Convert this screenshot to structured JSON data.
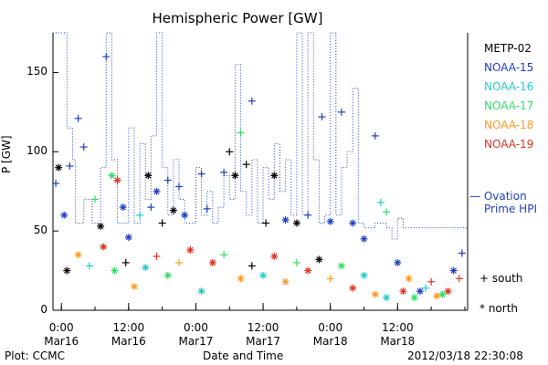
{
  "chart_data": {
    "type": "scatter",
    "title": "Hemispheric Power [GW]",
    "ylabel": "P [GW]",
    "xlabel": "Date and Time",
    "ylim": [
      0,
      175
    ],
    "yticks": [
      0,
      50,
      100,
      150
    ],
    "xlim": [
      "2012-03-15T22:30",
      "2012-03-19T00:30"
    ],
    "xticks": [
      {
        "time": "2012-03-16T00:00",
        "label": [
          "0:00",
          "Mar16"
        ]
      },
      {
        "time": "2012-03-16T12:00",
        "label": [
          "12:00",
          "Mar16"
        ]
      },
      {
        "time": "2012-03-17T00:00",
        "label": [
          "0:00",
          "Mar17"
        ]
      },
      {
        "time": "2012-03-17T12:00",
        "label": [
          "12:00",
          "Mar17"
        ]
      },
      {
        "time": "2012-03-18T00:00",
        "label": [
          "0:00",
          "Mar18"
        ]
      },
      {
        "time": "2012-03-18T12:00",
        "label": [
          "12:00",
          "Mar18"
        ]
      }
    ],
    "legend_position": "right",
    "series": [
      {
        "name": "METP-02",
        "color": "#000000"
      },
      {
        "name": "NOAA-15",
        "color": "#1f3fbf"
      },
      {
        "name": "NOAA-16",
        "color": "#22cccc"
      },
      {
        "name": "NOAA-17",
        "color": "#33dd66"
      },
      {
        "name": "NOAA-18",
        "color": "#ff9922"
      },
      {
        "name": "NOAA-19",
        "color": "#dd3322"
      }
    ],
    "ovation_line": {
      "name": "Ovation Prime HPI",
      "color": "#1f3fbf",
      "style": "dotted",
      "points": [
        [
          "2012-03-15T22:30",
          175
        ],
        [
          "2012-03-16T01:00",
          115
        ],
        [
          "2012-03-16T02:00",
          95
        ],
        [
          "2012-03-16T02:30",
          55
        ],
        [
          "2012-03-16T04:00",
          70
        ],
        [
          "2012-03-16T05:30",
          55
        ],
        [
          "2012-03-16T07:00",
          90
        ],
        [
          "2012-03-16T08:00",
          175
        ],
        [
          "2012-03-16T09:00",
          95
        ],
        [
          "2012-03-16T10:00",
          55
        ],
        [
          "2012-03-16T12:00",
          115
        ],
        [
          "2012-03-16T13:00",
          55
        ],
        [
          "2012-03-16T14:00",
          105
        ],
        [
          "2012-03-16T15:00",
          70
        ],
        [
          "2012-03-16T16:00",
          110
        ],
        [
          "2012-03-16T17:00",
          175
        ],
        [
          "2012-03-16T18:00",
          90
        ],
        [
          "2012-03-16T19:00",
          60
        ],
        [
          "2012-03-16T20:00",
          95
        ],
        [
          "2012-03-16T21:00",
          70
        ],
        [
          "2012-03-16T22:00",
          55
        ],
        [
          "2012-03-17T00:00",
          90
        ],
        [
          "2012-03-17T01:00",
          60
        ],
        [
          "2012-03-17T02:00",
          75
        ],
        [
          "2012-03-17T03:00",
          55
        ],
        [
          "2012-03-17T04:00",
          65
        ],
        [
          "2012-03-17T05:00",
          85
        ],
        [
          "2012-03-17T06:00",
          70
        ],
        [
          "2012-03-17T07:00",
          155
        ],
        [
          "2012-03-17T08:00",
          75
        ],
        [
          "2012-03-17T09:00",
          60
        ],
        [
          "2012-03-17T10:00",
          95
        ],
        [
          "2012-03-17T11:00",
          55
        ],
        [
          "2012-03-17T12:00",
          90
        ],
        [
          "2012-03-17T13:00",
          70
        ],
        [
          "2012-03-17T14:00",
          105
        ],
        [
          "2012-03-17T15:00",
          75
        ],
        [
          "2012-03-17T16:00",
          95
        ],
        [
          "2012-03-17T17:00",
          60
        ],
        [
          "2012-03-17T18:00",
          175
        ],
        [
          "2012-03-17T19:00",
          60
        ],
        [
          "2012-03-17T20:00",
          175
        ],
        [
          "2012-03-17T21:00",
          95
        ],
        [
          "2012-03-17T22:00",
          55
        ],
        [
          "2012-03-17T23:00",
          60
        ],
        [
          "2012-03-18T00:00",
          175
        ],
        [
          "2012-03-18T01:00",
          60
        ],
        [
          "2012-03-18T02:00",
          90
        ],
        [
          "2012-03-18T03:00",
          100
        ],
        [
          "2012-03-18T04:00",
          140
        ],
        [
          "2012-03-18T05:00",
          55
        ],
        [
          "2012-03-18T06:00",
          52
        ],
        [
          "2012-03-18T08:00",
          55
        ],
        [
          "2012-03-18T10:00",
          52
        ],
        [
          "2012-03-18T11:00",
          45
        ],
        [
          "2012-03-18T12:00",
          58
        ],
        [
          "2012-03-18T13:00",
          52
        ],
        [
          "2012-03-19T00:30",
          52
        ]
      ]
    },
    "points": [
      [
        "2012-03-15T23:00",
        80,
        "NOAA-15",
        "+"
      ],
      [
        "2012-03-15T23:30",
        90,
        "METP-02",
        "*"
      ],
      [
        "2012-03-16T00:30",
        60,
        "NOAA-15",
        "*"
      ],
      [
        "2012-03-16T01:30",
        91,
        "NOAA-15",
        "+"
      ],
      [
        "2012-03-16T03:00",
        121,
        "NOAA-15",
        "+"
      ],
      [
        "2012-03-16T04:00",
        103,
        "NOAA-15",
        "+"
      ],
      [
        "2012-03-16T06:00",
        70,
        "NOAA-17",
        "+"
      ],
      [
        "2012-03-16T07:00",
        53,
        "METP-02",
        "*"
      ],
      [
        "2012-03-16T08:00",
        160,
        "NOAA-15",
        "+"
      ],
      [
        "2012-03-16T09:00",
        85,
        "NOAA-17",
        "*"
      ],
      [
        "2012-03-16T10:00",
        82,
        "NOAA-19",
        "*"
      ],
      [
        "2012-03-16T11:00",
        65,
        "NOAA-15",
        "*"
      ],
      [
        "2012-03-16T12:00",
        46,
        "NOAA-15",
        "*"
      ],
      [
        "2012-03-16T14:00",
        60,
        "NOAA-16",
        "+"
      ],
      [
        "2012-03-16T15:30",
        85,
        "METP-02",
        "*"
      ],
      [
        "2012-03-16T16:00",
        65,
        "NOAA-15",
        "+"
      ],
      [
        "2012-03-16T17:00",
        75,
        "NOAA-15",
        "*"
      ],
      [
        "2012-03-16T18:00",
        55,
        "METP-02",
        "+"
      ],
      [
        "2012-03-16T19:00",
        82,
        "NOAA-15",
        "+"
      ],
      [
        "2012-03-16T20:00",
        63,
        "METP-02",
        "*"
      ],
      [
        "2012-03-16T21:00",
        78,
        "NOAA-15",
        "+"
      ],
      [
        "2012-03-16T22:00",
        60,
        "NOAA-15",
        "*"
      ],
      [
        "2012-03-17T01:00",
        86,
        "NOAA-15",
        "+"
      ],
      [
        "2012-03-17T02:00",
        64,
        "NOAA-15",
        "+"
      ],
      [
        "2012-03-17T05:00",
        87,
        "NOAA-15",
        "+"
      ],
      [
        "2012-03-17T06:00",
        100,
        "METP-02",
        "+"
      ],
      [
        "2012-03-17T07:00",
        85,
        "METP-02",
        "*"
      ],
      [
        "2012-03-17T08:00",
        112,
        "NOAA-17",
        "+"
      ],
      [
        "2012-03-17T09:00",
        92,
        "METP-02",
        "+"
      ],
      [
        "2012-03-17T10:00",
        132,
        "NOAA-15",
        "+"
      ],
      [
        "2012-03-17T12:30",
        55,
        "METP-02",
        "+"
      ],
      [
        "2012-03-17T14:00",
        85,
        "METP-02",
        "*"
      ],
      [
        "2012-03-17T16:00",
        57,
        "NOAA-15",
        "*"
      ],
      [
        "2012-03-17T18:00",
        55,
        "METP-02",
        "*"
      ],
      [
        "2012-03-17T20:00",
        60,
        "NOAA-15",
        "+"
      ],
      [
        "2012-03-17T22:30",
        122,
        "NOAA-15",
        "+"
      ],
      [
        "2012-03-18T00:00",
        56,
        "NOAA-15",
        "*"
      ],
      [
        "2012-03-18T02:00",
        125,
        "NOAA-15",
        "+"
      ],
      [
        "2012-03-18T04:00",
        55,
        "NOAA-15",
        "*"
      ],
      [
        "2012-03-18T06:00",
        45,
        "NOAA-15",
        "*"
      ],
      [
        "2012-03-18T08:00",
        110,
        "NOAA-15",
        "+"
      ],
      [
        "2012-03-18T09:00",
        68,
        "NOAA-16",
        "+"
      ],
      [
        "2012-03-18T10:00",
        62,
        "NOAA-17",
        "+"
      ],
      [
        "2012-03-18T12:00",
        30,
        "NOAA-15",
        "*"
      ],
      [
        "2012-03-18T14:00",
        20,
        "NOAA-18",
        "*"
      ],
      [
        "2012-03-18T16:00",
        12,
        "NOAA-15",
        "*"
      ],
      [
        "2012-03-18T18:00",
        18,
        "NOAA-19",
        "+"
      ],
      [
        "2012-03-18T20:00",
        10,
        "NOAA-17",
        "*"
      ],
      [
        "2012-03-18T22:00",
        25,
        "NOAA-15",
        "*"
      ],
      [
        "2012-03-18T23:30",
        36,
        "NOAA-15",
        "+"
      ],
      [
        "2012-03-16T01:00",
        25,
        "METP-02",
        "*"
      ],
      [
        "2012-03-16T03:00",
        35,
        "NOAA-18",
        "*"
      ],
      [
        "2012-03-16T05:00",
        28,
        "NOAA-16",
        "+"
      ],
      [
        "2012-03-16T07:30",
        40,
        "NOAA-19",
        "*"
      ],
      [
        "2012-03-16T09:30",
        25,
        "NOAA-17",
        "*"
      ],
      [
        "2012-03-16T11:30",
        30,
        "METP-02",
        "+"
      ],
      [
        "2012-03-16T13:00",
        15,
        "NOAA-18",
        "*"
      ],
      [
        "2012-03-16T15:00",
        27,
        "NOAA-16",
        "*"
      ],
      [
        "2012-03-16T17:00",
        34,
        "NOAA-19",
        "+"
      ],
      [
        "2012-03-16T19:00",
        22,
        "NOAA-17",
        "*"
      ],
      [
        "2012-03-16T21:00",
        30,
        "NOAA-18",
        "+"
      ],
      [
        "2012-03-16T23:00",
        38,
        "NOAA-19",
        "*"
      ],
      [
        "2012-03-17T01:00",
        12,
        "NOAA-16",
        "*"
      ],
      [
        "2012-03-17T03:00",
        30,
        "NOAA-19",
        "*"
      ],
      [
        "2012-03-17T05:00",
        35,
        "NOAA-17",
        "+"
      ],
      [
        "2012-03-17T08:00",
        20,
        "NOAA-18",
        "*"
      ],
      [
        "2012-03-17T10:00",
        28,
        "METP-02",
        "+"
      ],
      [
        "2012-03-17T12:00",
        22,
        "NOAA-16",
        "*"
      ],
      [
        "2012-03-17T14:00",
        34,
        "NOAA-19",
        "*"
      ],
      [
        "2012-03-17T16:00",
        18,
        "NOAA-18",
        "*"
      ],
      [
        "2012-03-17T18:00",
        30,
        "NOAA-17",
        "+"
      ],
      [
        "2012-03-17T20:00",
        25,
        "NOAA-19",
        "*"
      ],
      [
        "2012-03-17T22:00",
        32,
        "METP-02",
        "*"
      ],
      [
        "2012-03-18T00:00",
        20,
        "NOAA-18",
        "+"
      ],
      [
        "2012-03-18T02:00",
        28,
        "NOAA-17",
        "*"
      ],
      [
        "2012-03-18T04:00",
        14,
        "NOAA-19",
        "*"
      ],
      [
        "2012-03-18T06:00",
        22,
        "NOAA-16",
        "*"
      ],
      [
        "2012-03-18T08:00",
        10,
        "NOAA-18",
        "*"
      ],
      [
        "2012-03-18T10:00",
        8,
        "NOAA-16",
        "*"
      ],
      [
        "2012-03-18T13:00",
        12,
        "NOAA-19",
        "*"
      ],
      [
        "2012-03-18T15:00",
        8,
        "NOAA-17",
        "*"
      ],
      [
        "2012-03-18T17:00",
        14,
        "NOAA-16",
        "+"
      ],
      [
        "2012-03-18T19:00",
        9,
        "NOAA-18",
        "*"
      ],
      [
        "2012-03-18T21:00",
        12,
        "NOAA-19",
        "*"
      ],
      [
        "2012-03-18T23:00",
        20,
        "NOAA-19",
        "+"
      ]
    ]
  },
  "plot": {
    "title": "Hemispheric Power [GW]",
    "ylabel": "P [GW]",
    "xlabel": "Date and Time",
    "credit": "Plot: CCMC",
    "timestamp": "2012/03/18 22:30:08"
  },
  "legend": {
    "items": [
      "METP-02",
      "NOAA-15",
      "NOAA-16",
      "NOAA-17",
      "NOAA-18",
      "NOAA-19"
    ],
    "colors": [
      "#000000",
      "#1f3fbf",
      "#22cccc",
      "#33dd66",
      "#ff9922",
      "#dd3322"
    ],
    "ovation_line1": "— Ovation",
    "ovation_line2": "Prime HPI",
    "south": "+ south",
    "north": "* north"
  }
}
